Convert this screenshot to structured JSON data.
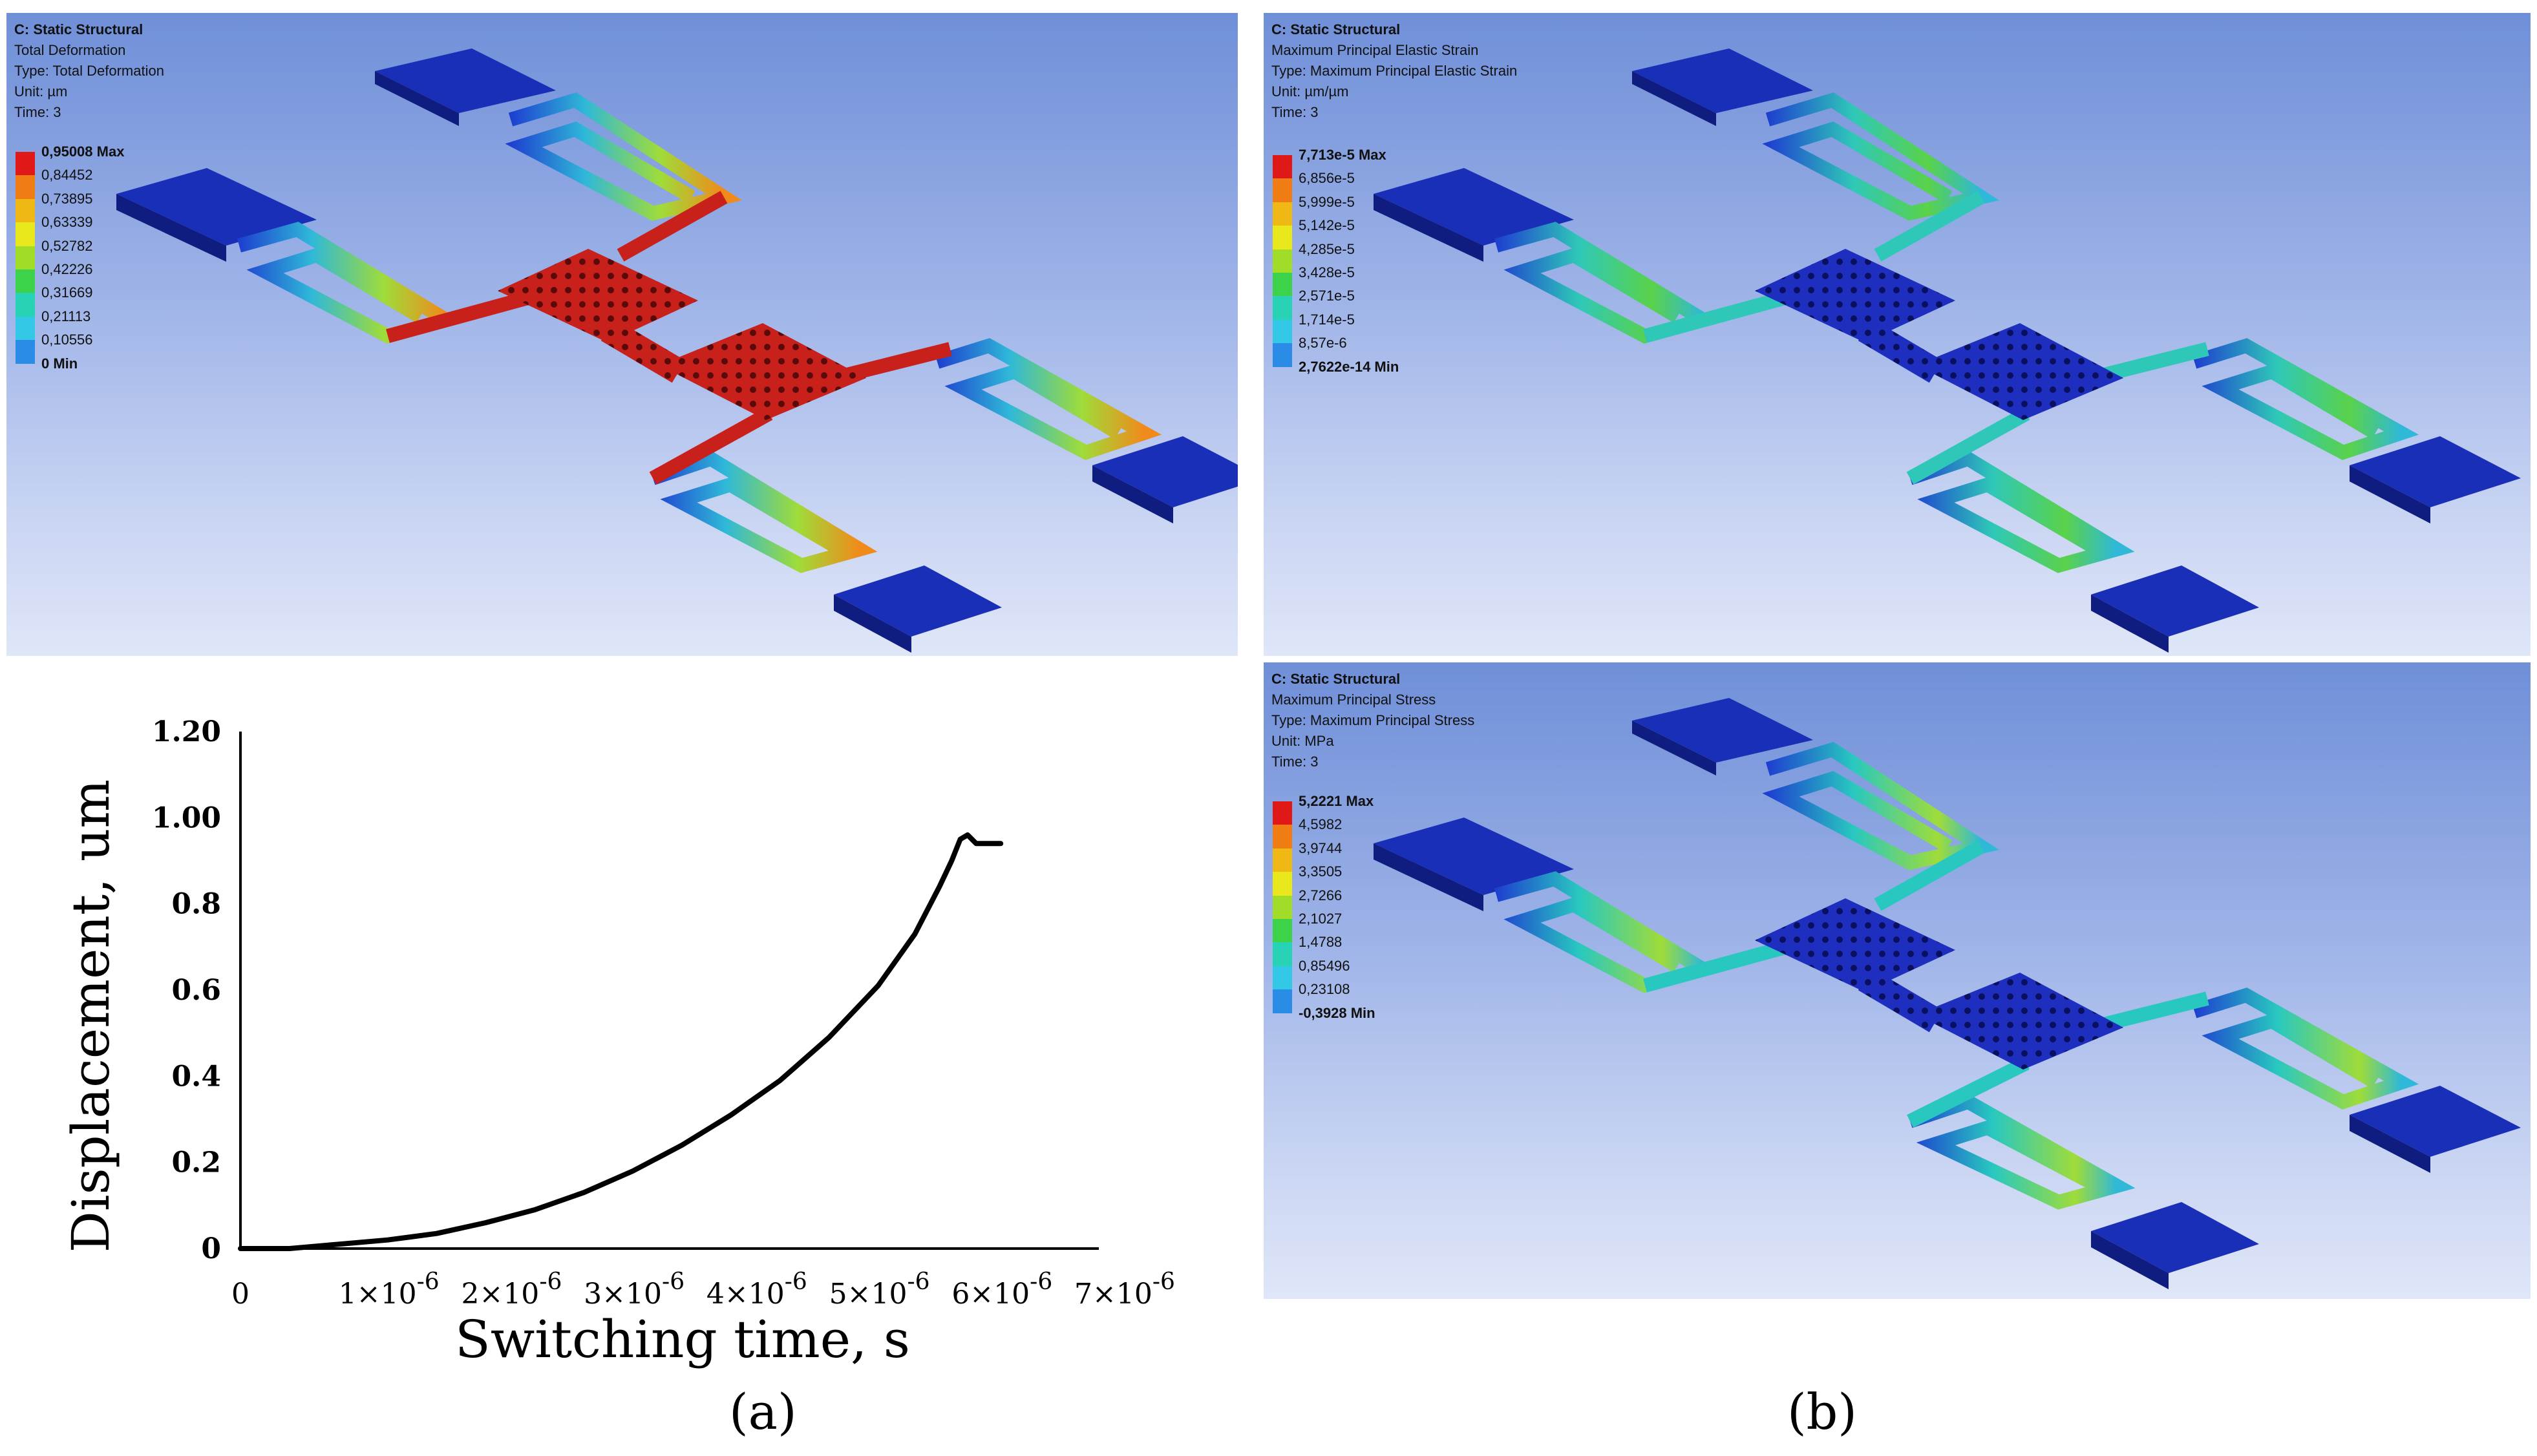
{
  "panels": [
    {
      "id": "deformation",
      "header": [
        "C: Static Structural",
        "Total Deformation",
        "Type: Total Deformation",
        "Unit: µm",
        "Time: 3"
      ],
      "legend": [
        "0,95008 Max",
        "0,84452",
        "0,73895",
        "0,63339",
        "0,52782",
        "0,42226",
        "0,31669",
        "0,21113",
        "0,10556",
        "0 Min"
      ],
      "body_color": "#d42a1c"
    },
    {
      "id": "strain",
      "header": [
        "C: Static Structural",
        "Maximum Principal Elastic Strain",
        "Type: Maximum Principal Elastic Strain",
        "Unit: µm/µm",
        "Time: 3"
      ],
      "legend": [
        "7,713e-5 Max",
        "6,856e-5",
        "5,999e-5",
        "5,142e-5",
        "4,285e-5",
        "3,428e-5",
        "2,571e-5",
        "1,714e-5",
        "8,57e-6",
        "2,7622e-14 Min"
      ],
      "body_color": "#1d2fb8"
    },
    {
      "id": "stress",
      "header": [
        "C: Static Structural",
        "Maximum Principal Stress",
        "Type: Maximum Principal Stress",
        "Unit: MPa",
        "Time: 3"
      ],
      "legend": [
        "5,2221 Max",
        "4,5982",
        "3,9744",
        "3,3505",
        "2,7266",
        "2,1027",
        "1,4788",
        "0,85496",
        "0,23108",
        "-0,3928 Min"
      ],
      "body_color": "#1d2fb8"
    }
  ],
  "legend_colors": [
    "#e01818",
    "#f07c14",
    "#f0b814",
    "#e8e81c",
    "#a0dc28",
    "#3cd24a",
    "#28d2b4",
    "#32c8e6",
    "#2a8ce6",
    "#1428d2"
  ],
  "chart_data": {
    "type": "line",
    "xlabel": "Switching time, s",
    "ylabel": "Displacement, um",
    "xlim": [
      0,
      7e-06
    ],
    "ylim": [
      0,
      1.2
    ],
    "xticks": [
      {
        "v": 0,
        "m": "0",
        "e": ""
      },
      {
        "v": 1e-06,
        "m": "1×10",
        "e": "-6"
      },
      {
        "v": 2e-06,
        "m": "2×10",
        "e": "-6"
      },
      {
        "v": 3e-06,
        "m": "3×10",
        "e": "-6"
      },
      {
        "v": 4e-06,
        "m": "4×10",
        "e": "-6"
      },
      {
        "v": 5e-06,
        "m": "5×10",
        "e": "-6"
      },
      {
        "v": 6e-06,
        "m": "6×10",
        "e": "-6"
      },
      {
        "v": 7e-06,
        "m": "7×10",
        "e": "-6"
      }
    ],
    "yticks": [
      {
        "v": 0,
        "label": "0"
      },
      {
        "v": 0.2,
        "label": "0.2"
      },
      {
        "v": 0.4,
        "label": "0.4"
      },
      {
        "v": 0.6,
        "label": "0.6"
      },
      {
        "v": 0.8,
        "label": "0.8"
      },
      {
        "v": 1.0,
        "label": "1.00"
      },
      {
        "v": 1.2,
        "label": "1.20"
      }
    ],
    "series": [
      {
        "x": [
          0,
          4e-07,
          8e-07,
          1.2e-06,
          1.6e-06,
          2e-06,
          2.4e-06,
          2.8e-06,
          3.2e-06,
          3.6e-06,
          4e-06,
          4.4e-06,
          4.8e-06,
          5.2e-06,
          5.5e-06,
          5.7e-06,
          5.8e-06,
          5.87e-06,
          5.93e-06,
          6e-06,
          6.2e-06
        ],
        "y": [
          0,
          0.0,
          0.01,
          0.02,
          0.035,
          0.06,
          0.09,
          0.13,
          0.18,
          0.24,
          0.31,
          0.39,
          0.49,
          0.61,
          0.73,
          0.84,
          0.9,
          0.95,
          0.96,
          0.94,
          0.94
        ]
      }
    ]
  },
  "labels": {
    "a": "(a)",
    "b": "(b)"
  }
}
